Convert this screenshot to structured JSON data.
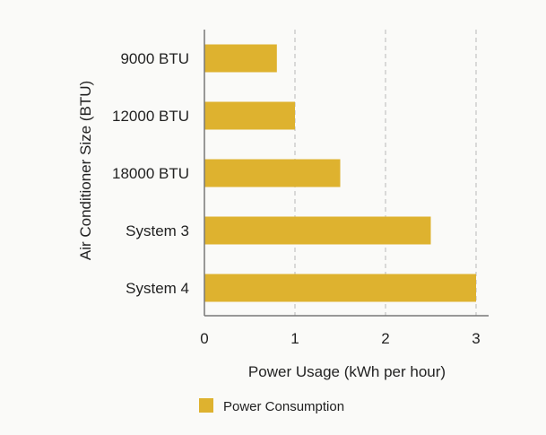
{
  "chart_data": {
    "type": "bar",
    "orientation": "horizontal",
    "categories": [
      "9000 BTU",
      "12000 BTU",
      "18000 BTU",
      "System 3",
      "System 4"
    ],
    "series": [
      {
        "name": "Power Consumption",
        "values": [
          0.8,
          1.0,
          1.5,
          2.5,
          3.0
        ],
        "color": "#deb22f"
      }
    ],
    "xlabel": "Power Usage (kWh per hour)",
    "ylabel": "Air Conditioner Size (BTU)",
    "xlim": [
      0,
      3.15
    ],
    "xticks": [
      0,
      1,
      2,
      3
    ],
    "grid": {
      "x": true,
      "style": "dashed",
      "color": "#b8b8b8"
    },
    "axis_color": "#777777",
    "legend": {
      "position": "bottom-left"
    }
  }
}
